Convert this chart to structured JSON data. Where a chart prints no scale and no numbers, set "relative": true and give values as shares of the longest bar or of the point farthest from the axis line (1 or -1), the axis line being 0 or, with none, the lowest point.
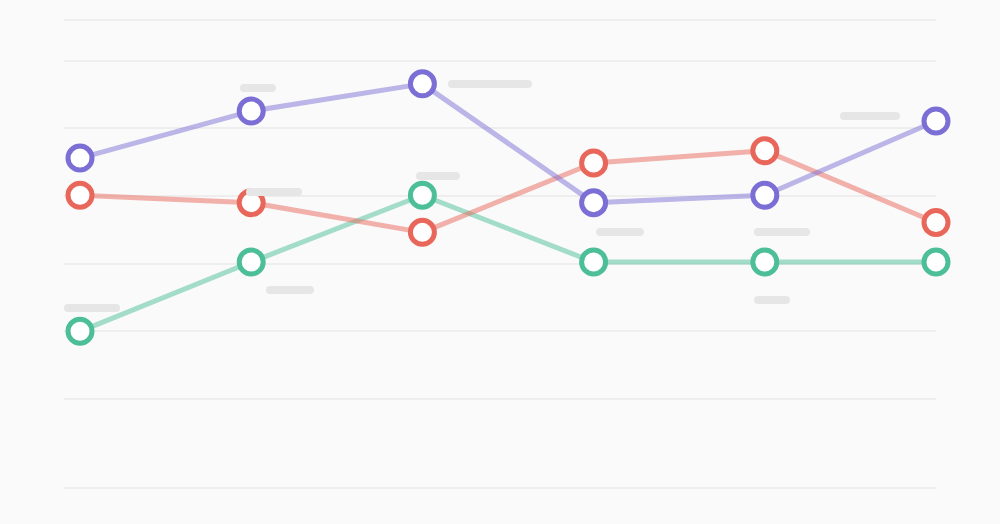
{
  "chart_data": {
    "type": "line",
    "relative": true,
    "categories": [
      null,
      null,
      null,
      null,
      null,
      null
    ],
    "series": [
      {
        "color": "#7b6fd6",
        "values": [
          0.7,
          0.89,
          1,
          0.52,
          0.55,
          0.85
        ]
      },
      {
        "color": "#e8675a",
        "values": [
          0.55,
          0.52,
          0.4,
          0.68,
          0.73,
          0.44
        ]
      },
      {
        "color": "#4cbf99",
        "values": [
          0,
          0.28,
          0.55,
          0.28,
          0.28,
          0.28
        ]
      }
    ],
    "grid": "y",
    "legend": false,
    "marker": "circle",
    "line_style": "solid"
  }
}
